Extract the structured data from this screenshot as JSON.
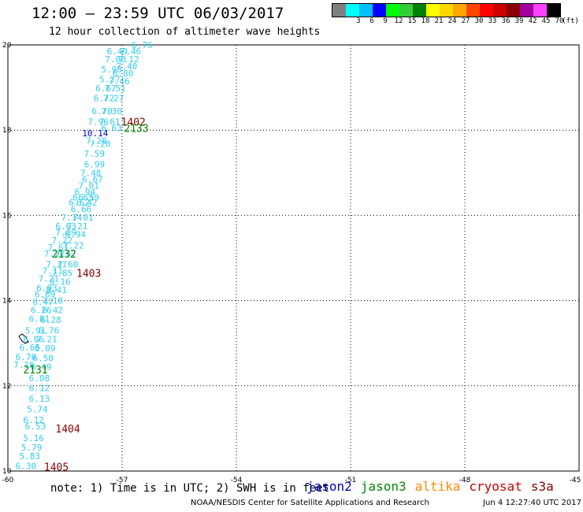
{
  "header": {
    "title": "12:00 – 23:59 UTC 06/03/2017",
    "subtitle": "12 hour collection of altimeter wave heights"
  },
  "legend": {
    "unit_label": "(ft)",
    "bins": [
      {
        "label": "",
        "color": "#808080"
      },
      {
        "label": "3",
        "color": "#00ffff"
      },
      {
        "label": "6",
        "color": "#00bfff"
      },
      {
        "label": "9",
        "color": "#0000ff"
      },
      {
        "label": "12",
        "color": "#00ff00"
      },
      {
        "label": "15",
        "color": "#32cd32"
      },
      {
        "label": "18",
        "color": "#008000"
      },
      {
        "label": "21",
        "color": "#ffff00"
      },
      {
        "label": "24",
        "color": "#ffd700"
      },
      {
        "label": "27",
        "color": "#ffa500"
      },
      {
        "label": "30",
        "color": "#ff4500"
      },
      {
        "label": "33",
        "color": "#ff0000"
      },
      {
        "label": "36",
        "color": "#cd0000"
      },
      {
        "label": "39",
        "color": "#8b0000"
      },
      {
        "label": "42",
        "color": "#a000a0"
      },
      {
        "label": "45",
        "color": "#ff40ff"
      },
      {
        "label": "70",
        "color": "#000000"
      }
    ]
  },
  "map": {
    "lon_ticks": [
      "-60",
      "-57",
      "-54",
      "-51",
      "-48",
      "-45"
    ],
    "lat_ticks": [
      "10",
      "12",
      "14",
      "16",
      "18",
      "20"
    ],
    "colors": {
      "light_cyan": "#33ccee",
      "blue": "#0000cc",
      "green": "#008800",
      "darkred": "#880000"
    },
    "passes": [
      {
        "label": "1402",
        "color": "darkred",
        "lon": -57.03,
        "lat": 18.2
      },
      {
        "label": "2133",
        "color": "green",
        "lon": -56.95,
        "lat": 18.05
      },
      {
        "label": "2132",
        "color": "green",
        "lon": -58.85,
        "lat": 15.1
      },
      {
        "label": "1403",
        "color": "darkred",
        "lon": -58.2,
        "lat": 14.65
      },
      {
        "label": "2131",
        "color": "green",
        "lon": -59.6,
        "lat": 12.38
      },
      {
        "label": "1404",
        "color": "darkred",
        "lon": -58.75,
        "lat": 11.0
      },
      {
        "label": "1405",
        "color": "darkred",
        "lon": -59.05,
        "lat": 10.1
      }
    ],
    "observations": [
      {
        "v": "6.76",
        "c": "light_cyan",
        "lon": -56.75,
        "lat": 20.0
      },
      {
        "v": "6.49",
        "c": "light_cyan",
        "lon": -57.4,
        "lat": 19.85
      },
      {
        "v": "7.46",
        "c": "light_cyan",
        "lon": -57.05,
        "lat": 19.85
      },
      {
        "v": "7.00",
        "c": "light_cyan",
        "lon": -57.45,
        "lat": 19.67
      },
      {
        "v": "7.12",
        "c": "light_cyan",
        "lon": -57.1,
        "lat": 19.67
      },
      {
        "v": "7.40",
        "c": "light_cyan",
        "lon": -57.15,
        "lat": 19.5
      },
      {
        "v": "5.98",
        "c": "light_cyan",
        "lon": -57.55,
        "lat": 19.43
      },
      {
        "v": "6.80",
        "c": "light_cyan",
        "lon": -57.25,
        "lat": 19.33
      },
      {
        "v": "5.27",
        "c": "light_cyan",
        "lon": -57.6,
        "lat": 19.2
      },
      {
        "v": "7.46",
        "c": "light_cyan",
        "lon": -57.35,
        "lat": 19.15
      },
      {
        "v": "6.67",
        "c": "light_cyan",
        "lon": -57.7,
        "lat": 18.98
      },
      {
        "v": "7.51",
        "c": "light_cyan",
        "lon": -57.45,
        "lat": 18.98
      },
      {
        "v": "6.72",
        "c": "light_cyan",
        "lon": -57.75,
        "lat": 18.75
      },
      {
        "v": "7.27",
        "c": "light_cyan",
        "lon": -57.5,
        "lat": 18.75
      },
      {
        "v": "6.70",
        "c": "light_cyan",
        "lon": -57.8,
        "lat": 18.45
      },
      {
        "v": "7.30",
        "c": "light_cyan",
        "lon": -57.55,
        "lat": 18.45
      },
      {
        "v": "7.96",
        "c": "light_cyan",
        "lon": -57.9,
        "lat": 18.2
      },
      {
        "v": "7.61",
        "c": "light_cyan",
        "lon": -57.6,
        "lat": 18.2
      },
      {
        "v": "6.63",
        "c": "light_cyan",
        "lon": -57.55,
        "lat": 18.05
      },
      {
        "v": "10.14",
        "c": "blue",
        "lon": -58.05,
        "lat": 17.93
      },
      {
        "v": "7.28",
        "c": "light_cyan",
        "lon": -57.95,
        "lat": 17.75
      },
      {
        "v": "7.20",
        "c": "light_cyan",
        "lon": -57.85,
        "lat": 17.68
      },
      {
        "v": "7.59",
        "c": "light_cyan",
        "lon": -58.0,
        "lat": 17.45
      },
      {
        "v": "6.99",
        "c": "light_cyan",
        "lon": -58.0,
        "lat": 17.2
      },
      {
        "v": "7.48",
        "c": "light_cyan",
        "lon": -58.1,
        "lat": 17.0
      },
      {
        "v": "6.67",
        "c": "light_cyan",
        "lon": -58.05,
        "lat": 16.85
      },
      {
        "v": "7.01",
        "c": "light_cyan",
        "lon": -58.15,
        "lat": 16.7
      },
      {
        "v": "6.94",
        "c": "light_cyan",
        "lon": -58.25,
        "lat": 16.55
      },
      {
        "v": "6.63",
        "c": "light_cyan",
        "lon": -58.3,
        "lat": 16.42
      },
      {
        "v": "6.59",
        "c": "light_cyan",
        "lon": -58.15,
        "lat": 16.42
      },
      {
        "v": "6.52",
        "c": "light_cyan",
        "lon": -58.4,
        "lat": 16.3
      },
      {
        "v": "6.42",
        "c": "light_cyan",
        "lon": -58.2,
        "lat": 16.3
      },
      {
        "v": "6.66",
        "c": "light_cyan",
        "lon": -58.35,
        "lat": 16.15
      },
      {
        "v": "7.14",
        "c": "light_cyan",
        "lon": -58.6,
        "lat": 15.95
      },
      {
        "v": "7.01",
        "c": "light_cyan",
        "lon": -58.3,
        "lat": 15.95
      },
      {
        "v": "6.63",
        "c": "light_cyan",
        "lon": -58.75,
        "lat": 15.75
      },
      {
        "v": "7.21",
        "c": "light_cyan",
        "lon": -58.45,
        "lat": 15.75
      },
      {
        "v": "7.09",
        "c": "light_cyan",
        "lon": -58.75,
        "lat": 15.6
      },
      {
        "v": "6.94",
        "c": "light_cyan",
        "lon": -58.5,
        "lat": 15.55
      },
      {
        "v": "7.22",
        "c": "light_cyan",
        "lon": -58.85,
        "lat": 15.42
      },
      {
        "v": "7.22",
        "c": "light_cyan",
        "lon": -58.55,
        "lat": 15.3
      },
      {
        "v": "7.61",
        "c": "light_cyan",
        "lon": -58.95,
        "lat": 15.25
      },
      {
        "v": "7.27",
        "c": "light_cyan",
        "lon": -59.05,
        "lat": 15.1
      },
      {
        "v": "7.67",
        "c": "light_cyan",
        "lon": -58.75,
        "lat": 15.1
      },
      {
        "v": "7.37",
        "c": "light_cyan",
        "lon": -59.0,
        "lat": 14.85
      },
      {
        "v": "7.60",
        "c": "light_cyan",
        "lon": -58.7,
        "lat": 14.85
      },
      {
        "v": "7.11",
        "c": "light_cyan",
        "lon": -59.1,
        "lat": 14.7
      },
      {
        "v": "7.85",
        "c": "light_cyan",
        "lon": -58.85,
        "lat": 14.65
      },
      {
        "v": "7.21",
        "c": "light_cyan",
        "lon": -59.2,
        "lat": 14.52
      },
      {
        "v": "8.16",
        "c": "light_cyan",
        "lon": -58.9,
        "lat": 14.45
      },
      {
        "v": "6.93",
        "c": "light_cyan",
        "lon": -59.25,
        "lat": 14.3
      },
      {
        "v": "8.41",
        "c": "light_cyan",
        "lon": -59.0,
        "lat": 14.25
      },
      {
        "v": "6.69",
        "c": "light_cyan",
        "lon": -59.3,
        "lat": 14.15
      },
      {
        "v": "6.47",
        "c": "light_cyan",
        "lon": -59.35,
        "lat": 13.97
      },
      {
        "v": "7.18",
        "c": "light_cyan",
        "lon": -59.1,
        "lat": 14.0
      },
      {
        "v": "6.26",
        "c": "light_cyan",
        "lon": -59.4,
        "lat": 13.78
      },
      {
        "v": "6.42",
        "c": "light_cyan",
        "lon": -59.1,
        "lat": 13.78
      },
      {
        "v": "6.81",
        "c": "light_cyan",
        "lon": -59.45,
        "lat": 13.58
      },
      {
        "v": "6.28",
        "c": "light_cyan",
        "lon": -59.15,
        "lat": 13.55
      },
      {
        "v": "5.91",
        "c": "light_cyan",
        "lon": -59.55,
        "lat": 13.3
      },
      {
        "v": "6.76",
        "c": "light_cyan",
        "lon": -59.2,
        "lat": 13.3
      },
      {
        "v": "6.06",
        "c": "light_cyan",
        "lon": -59.6,
        "lat": 13.1
      },
      {
        "v": "7.21",
        "c": "light_cyan",
        "lon": -59.25,
        "lat": 13.1
      },
      {
        "v": "6.65",
        "c": "light_cyan",
        "lon": -59.7,
        "lat": 12.9
      },
      {
        "v": "6.09",
        "c": "light_cyan",
        "lon": -59.3,
        "lat": 12.88
      },
      {
        "v": "6.76",
        "c": "light_cyan",
        "lon": -59.8,
        "lat": 12.68
      },
      {
        "v": "6.50",
        "c": "light_cyan",
        "lon": -59.35,
        "lat": 12.65
      },
      {
        "v": "7.16",
        "c": "light_cyan",
        "lon": -59.85,
        "lat": 12.5
      },
      {
        "v": "6.49",
        "c": "light_cyan",
        "lon": -59.4,
        "lat": 12.45
      },
      {
        "v": "6.08",
        "c": "light_cyan",
        "lon": -59.45,
        "lat": 12.18
      },
      {
        "v": "6.12",
        "c": "light_cyan",
        "lon": -59.45,
        "lat": 11.95
      },
      {
        "v": "6.13",
        "c": "light_cyan",
        "lon": -59.45,
        "lat": 11.7
      },
      {
        "v": "5.74",
        "c": "light_cyan",
        "lon": -59.5,
        "lat": 11.45
      },
      {
        "v": "6.12",
        "c": "light_cyan",
        "lon": -59.6,
        "lat": 11.2
      },
      {
        "v": "6.53",
        "c": "light_cyan",
        "lon": -59.55,
        "lat": 11.05
      },
      {
        "v": "5.16",
        "c": "light_cyan",
        "lon": -59.6,
        "lat": 10.78
      },
      {
        "v": "5.79",
        "c": "light_cyan",
        "lon": -59.65,
        "lat": 10.55
      },
      {
        "v": "5.83",
        "c": "light_cyan",
        "lon": -59.7,
        "lat": 10.35
      },
      {
        "v": "6.30",
        "c": "light_cyan",
        "lon": -59.8,
        "lat": 10.12
      }
    ]
  },
  "note": "note: 1) Time is in UTC; 2) SWH is in feet",
  "satellites": [
    {
      "name": "jason2",
      "color": "#0000cc"
    },
    {
      "name": "jason3",
      "color": "#008800"
    },
    {
      "name": "altika",
      "color": "#ff8800"
    },
    {
      "name": "cryosat",
      "color": "#cc0000"
    },
    {
      "name": "s3a",
      "color": "#880000"
    }
  ],
  "footer": {
    "credit": "NOAA/NESDIS Center for Satellite Applications and Research",
    "timestamp": "Jun  4 12:27:40 UTC 2017"
  }
}
